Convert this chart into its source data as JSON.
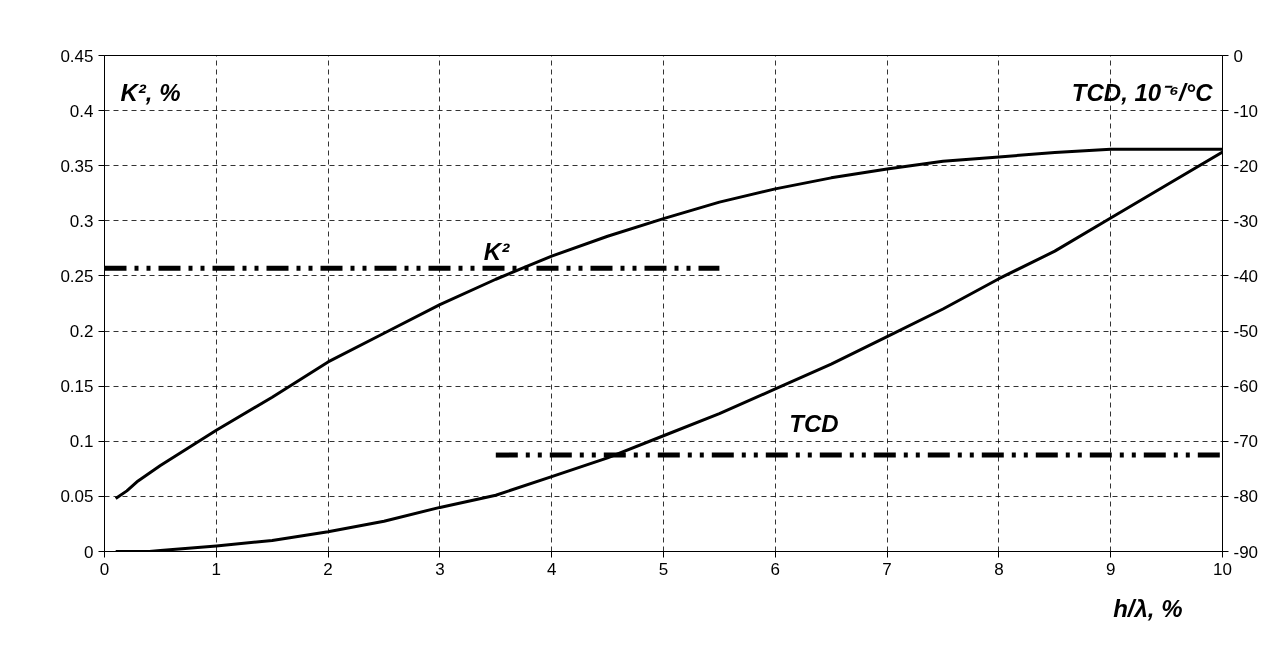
{
  "chart_data": {
    "type": "line",
    "xlabel": "h/λ, %",
    "ylabel": "K², %",
    "y2label": "TCD, 10⁻⁶/°C",
    "xlim": [
      0,
      10
    ],
    "xticks": [
      0,
      1,
      2,
      3,
      4,
      5,
      6,
      7,
      8,
      9,
      10
    ],
    "ylim": [
      0,
      0.45
    ],
    "yticks": [
      0,
      0.05,
      0.1,
      0.15,
      0.2,
      0.25,
      0.3,
      0.35,
      0.4,
      0.45
    ],
    "y2lim": [
      -90,
      0
    ],
    "y2ticks": [
      -90,
      -80,
      -70,
      -60,
      -50,
      -40,
      -30,
      -20,
      -10,
      0
    ],
    "grid": true,
    "series": [
      {
        "name": "K²",
        "color": "#000000",
        "x": [
          0.1,
          0.2,
          0.3,
          0.5,
          1,
          1.5,
          2,
          2.5,
          3,
          3.5,
          4,
          4.5,
          5,
          5.5,
          6,
          6.5,
          7,
          7.5,
          8,
          8.5,
          9,
          9.5,
          10
        ],
        "values": [
          0.048,
          0.055,
          0.064,
          0.078,
          0.11,
          0.14,
          0.172,
          0.198,
          0.224,
          0.247,
          0.268,
          0.286,
          0.302,
          0.317,
          0.329,
          0.339,
          0.347,
          0.354,
          0.358,
          0.362,
          0.365,
          0.365,
          0.365
        ]
      },
      {
        "name": "TCD",
        "axis": "y2",
        "color": "#000000",
        "x": [
          0.1,
          0.4,
          0.5,
          1,
          1.5,
          2,
          2.5,
          3,
          3.5,
          4,
          4.5,
          5,
          5.5,
          6,
          6.5,
          7,
          7.5,
          8,
          8.5,
          9,
          9.5,
          10
        ],
        "values": [
          -90,
          -90,
          -89.8,
          -89,
          -88,
          -86.4,
          -84.5,
          -82,
          -79.8,
          -76.4,
          -73,
          -69,
          -65,
          -60.5,
          -56,
          -51,
          -46,
          -40.5,
          -35.5,
          -29.5,
          -23.5,
          -17.5
        ]
      },
      {
        "color": "#000000",
        "line_style": "dashed",
        "x": [
          0,
          5.5
        ],
        "values": [
          0.257,
          0.257
        ]
      },
      {
        "color": "#000000",
        "line_style": "dashed",
        "axis": "y2",
        "x": [
          3.5,
          10
        ],
        "values": [
          -72.5,
          -72.5
        ]
      }
    ]
  }
}
